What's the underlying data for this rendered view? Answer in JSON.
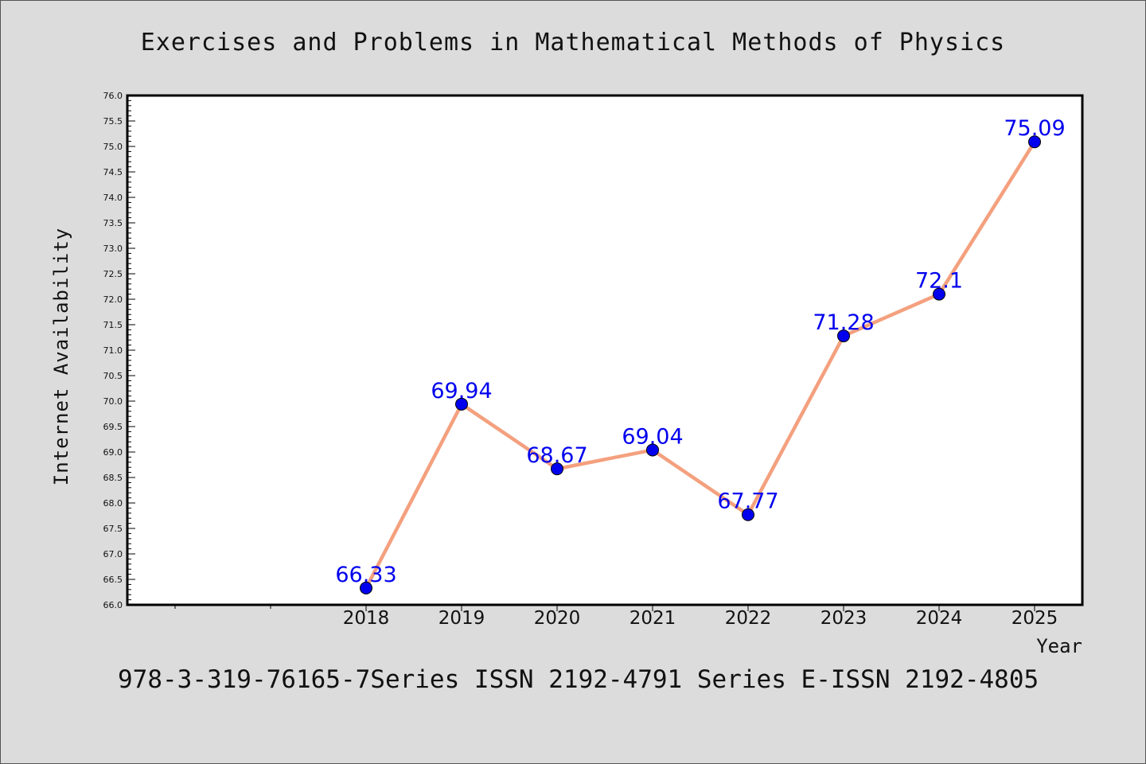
{
  "chart_data": {
    "type": "line",
    "title": "Exercises and Problems in Mathematical Methods of Physics",
    "xlabel": "Year",
    "ylabel": "Internet Availability",
    "footer": "978-3-319-76165-7Series ISSN 2192-4791 Series E-ISSN 2192-4805",
    "x": [
      "2018",
      "2019",
      "2020",
      "2021",
      "2022",
      "2023",
      "2024",
      "2025"
    ],
    "series": [
      {
        "values": [
          66.33,
          69.94,
          68.67,
          69.04,
          67.77,
          71.28,
          72.1,
          75.09
        ],
        "labels": [
          "66.33",
          "69.94",
          "68.67",
          "69.04",
          "67.77",
          "71.28",
          "72.1",
          "75.09"
        ]
      }
    ],
    "ylim": [
      66.0,
      76.0
    ],
    "yticks": [
      "66.0",
      "66.5",
      "67.0",
      "67.5",
      "68.0",
      "68.5",
      "69.0",
      "69.5",
      "70.0",
      "70.5",
      "71.0",
      "71.5",
      "72.0",
      "72.5",
      "73.0",
      "73.5",
      "74.0",
      "74.5",
      "75.0",
      "75.5",
      "76.0"
    ],
    "grid": false,
    "legend": "none",
    "colors": {
      "line": "#f4a07e",
      "marker": "#0000ee",
      "label": "#0000ee",
      "background": "#dcdcdc",
      "plot_background": "#ffffff"
    }
  }
}
